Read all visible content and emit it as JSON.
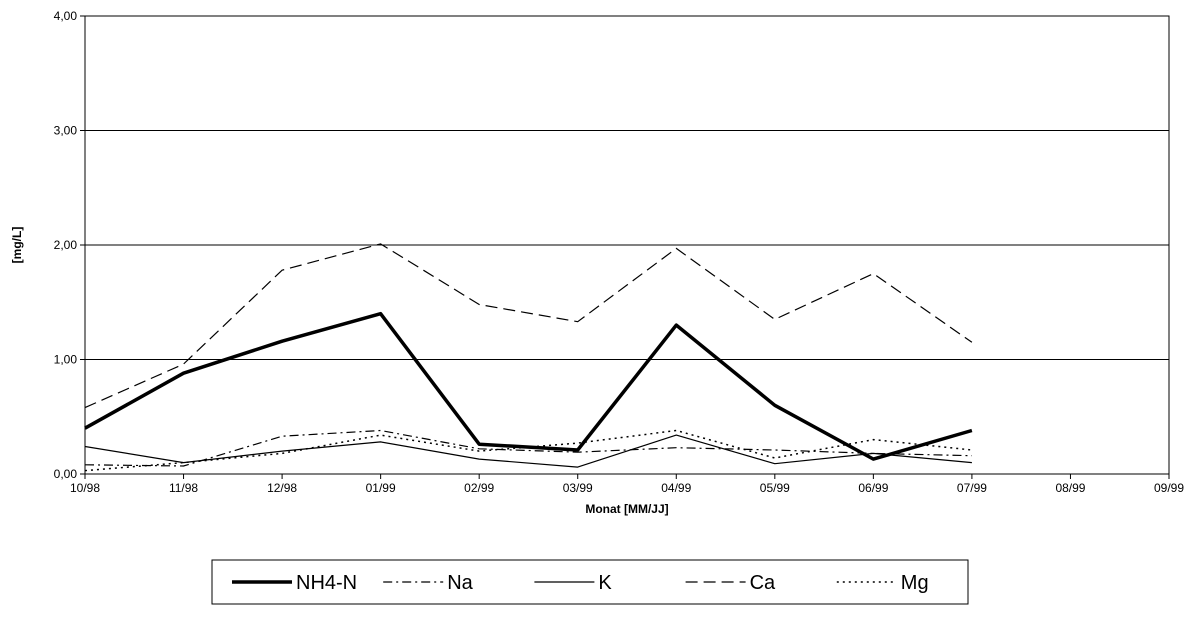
{
  "chart_data": {
    "type": "line",
    "title": "",
    "xlabel": "Monat [MM/JJ]",
    "ylabel": "[mg/L]",
    "ylim": [
      0,
      4
    ],
    "yticks": [
      "0,00",
      "1,00",
      "2,00",
      "3,00",
      "4,00"
    ],
    "categories": [
      "10/98",
      "11/98",
      "12/98",
      "01/99",
      "02/99",
      "03/99",
      "04/99",
      "05/99",
      "06/99",
      "07/99",
      "08/99",
      "09/99"
    ],
    "grid": "horizontal",
    "legend_position": "bottom",
    "series": [
      {
        "name": "NH4-N",
        "style": "thick-solid",
        "color": "#000000",
        "values": [
          0.4,
          0.88,
          1.16,
          1.4,
          0.26,
          0.21,
          1.3,
          0.6,
          0.13,
          0.38,
          null,
          null
        ]
      },
      {
        "name": "Na",
        "style": "dash-dot",
        "color": "#000000",
        "values": [
          0.08,
          0.07,
          0.33,
          0.38,
          0.22,
          0.19,
          0.23,
          0.21,
          0.18,
          0.16,
          null,
          null
        ]
      },
      {
        "name": "K",
        "style": "thin-solid",
        "color": "#000000",
        "values": [
          0.24,
          0.1,
          0.2,
          0.28,
          0.13,
          0.06,
          0.34,
          0.09,
          0.18,
          0.1,
          null,
          null
        ]
      },
      {
        "name": "Ca",
        "style": "long-dash",
        "color": "#000000",
        "values": [
          0.58,
          0.96,
          1.78,
          2.01,
          1.48,
          1.33,
          1.97,
          1.35,
          1.75,
          1.15,
          null,
          null
        ]
      },
      {
        "name": "Mg",
        "style": "dotted",
        "color": "#000000",
        "values": [
          0.03,
          0.1,
          0.18,
          0.34,
          0.2,
          0.27,
          0.38,
          0.14,
          0.3,
          0.21,
          null,
          null
        ]
      }
    ]
  }
}
